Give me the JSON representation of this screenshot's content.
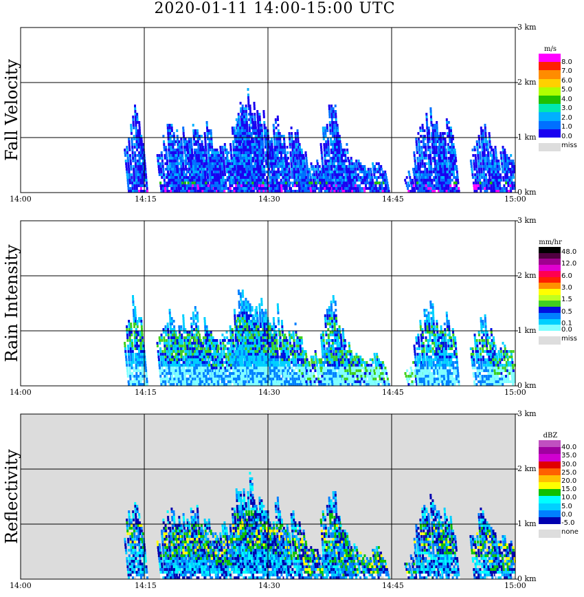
{
  "title": "2020-01-11   14:00-15:00 UTC",
  "x_ticks": [
    "14:00",
    "14:15",
    "14:30",
    "14:45",
    "15:00"
  ],
  "y_ticks": [
    "0 km",
    "1 km",
    "2 km",
    "3 km"
  ],
  "panels": [
    {
      "id": "fall-velocity",
      "ylabel": "Fall Velocity",
      "background": "#ffffff",
      "legend": {
        "unit": "m/s",
        "colors": [
          "#ff00ff",
          "#ff2000",
          "#ff8c00",
          "#ffd000",
          "#b0ff00",
          "#20c000",
          "#00e8b0",
          "#00b0ff",
          "#0070ff",
          "#1a00f0"
        ],
        "labels": [
          "8.0",
          "7.0",
          "6.0",
          "5.0",
          "4.0",
          "3.0",
          "2.0",
          "1.0",
          "0.0"
        ],
        "miss_label": "miss",
        "miss_color": "#dddddd"
      }
    },
    {
      "id": "rain-intensity",
      "ylabel": "Rain Intensity",
      "background": "#ffffff",
      "legend": {
        "unit": "mm/hr",
        "colors": [
          "#000000",
          "#500040",
          "#a00090",
          "#e000d0",
          "#ff0050",
          "#ff2000",
          "#ff9000",
          "#ffff00",
          "#c0ff20",
          "#40d020",
          "#0010e0",
          "#0080ff",
          "#00d0ff",
          "#80ffff"
        ],
        "labels": [
          "48.0",
          "12.0",
          "6.0",
          "3.0",
          "1.5",
          "0.5",
          "0.1",
          "0.0"
        ],
        "label_ticks": [
          0,
          2,
          4,
          6,
          8,
          10,
          12,
          13
        ],
        "miss_label": "miss",
        "miss_color": "#dddddd"
      }
    },
    {
      "id": "reflectivity",
      "ylabel": "Reflectivity",
      "background": "#dcdcdc",
      "legend": {
        "unit": "dBZ",
        "colors": [
          "#c050c0",
          "#a000a0",
          "#d000d0",
          "#e00000",
          "#ff6000",
          "#ffc000",
          "#ffff00",
          "#10c000",
          "#00ffff",
          "#00d0ff",
          "#0080ff",
          "#0000b0"
        ],
        "labels": [
          "40.0",
          "35.0",
          "30.0",
          "25.0",
          "20.0",
          "15.0",
          "10.0",
          "5.0",
          "0.0",
          "-5.0"
        ],
        "miss_label": "none",
        "miss_color": "#dddddd"
      }
    }
  ],
  "chart_data": {
    "type": "heatmap",
    "x_range": [
      "14:00",
      "15:00"
    ],
    "y_range_km": [
      0,
      3.0
    ],
    "fields": [
      "Fall Velocity",
      "Rain Intensity",
      "Reflectivity"
    ],
    "cells": [
      {
        "t_min": 14.2,
        "top_km": 1.6
      },
      {
        "t_min": 18.5,
        "top_km": 1.3
      },
      {
        "t_min": 20.0,
        "top_km": 1.2
      },
      {
        "t_min": 21.5,
        "top_km": 1.4
      },
      {
        "t_min": 23.0,
        "top_km": 1.2
      },
      {
        "t_min": 25.0,
        "top_km": 1.0
      },
      {
        "t_min": 27.0,
        "top_km": 1.8
      },
      {
        "t_min": 28.0,
        "top_km": 1.9
      },
      {
        "t_min": 29.5,
        "top_km": 1.5
      },
      {
        "t_min": 31.5,
        "top_km": 1.4
      },
      {
        "t_min": 33.5,
        "top_km": 1.2
      },
      {
        "t_min": 36.0,
        "top_km": 0.6
      },
      {
        "t_min": 38.0,
        "top_km": 1.8
      },
      {
        "t_min": 39.0,
        "top_km": 1.1
      },
      {
        "t_min": 41.0,
        "top_km": 0.6
      },
      {
        "t_min": 43.5,
        "top_km": 0.6
      },
      {
        "t_min": 48.5,
        "top_km": 0.5
      },
      {
        "t_min": 50.0,
        "top_km": 1.5
      },
      {
        "t_min": 52.0,
        "top_km": 1.4
      },
      {
        "t_min": 56.5,
        "top_km": 1.3
      },
      {
        "t_min": 59.0,
        "top_km": 0.8
      }
    ]
  }
}
